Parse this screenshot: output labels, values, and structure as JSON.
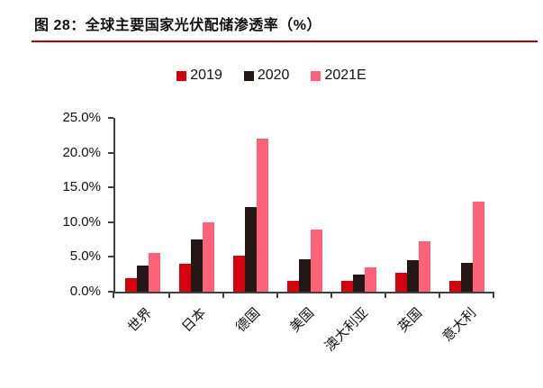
{
  "figure": {
    "title": "图 28：全球主要国家光伏配储渗透率（%）",
    "accent_color": "#C00000",
    "axis_color": "#404040"
  },
  "chart_data": {
    "type": "bar",
    "title": "图 28：全球主要国家光伏配储渗透率（%）",
    "categories": [
      "世界",
      "日本",
      "德国",
      "美国",
      "澳大利亚",
      "英国",
      "意大利"
    ],
    "series": [
      {
        "name": "2019",
        "color": "#D7000F",
        "values": [
          2.0,
          4.0,
          5.2,
          1.5,
          1.5,
          2.7,
          1.5
        ]
      },
      {
        "name": "2020",
        "color": "#231815",
        "values": [
          3.8,
          7.5,
          12.2,
          4.7,
          2.5,
          4.6,
          4.1
        ]
      },
      {
        "name": "2021E",
        "color": "#FD6376",
        "values": [
          5.6,
          10.0,
          22.0,
          9.0,
          3.5,
          7.3,
          13.0
        ]
      }
    ],
    "xlabel": "",
    "ylabel": "",
    "ylim": [
      0,
      25
    ],
    "ytick_step": 5,
    "ytick_labels": [
      "0.0%",
      "5.0%",
      "10.0%",
      "15.0%",
      "20.0%",
      "25.0%"
    ],
    "grid": false,
    "legend_position": "top-center",
    "unit": "%"
  }
}
